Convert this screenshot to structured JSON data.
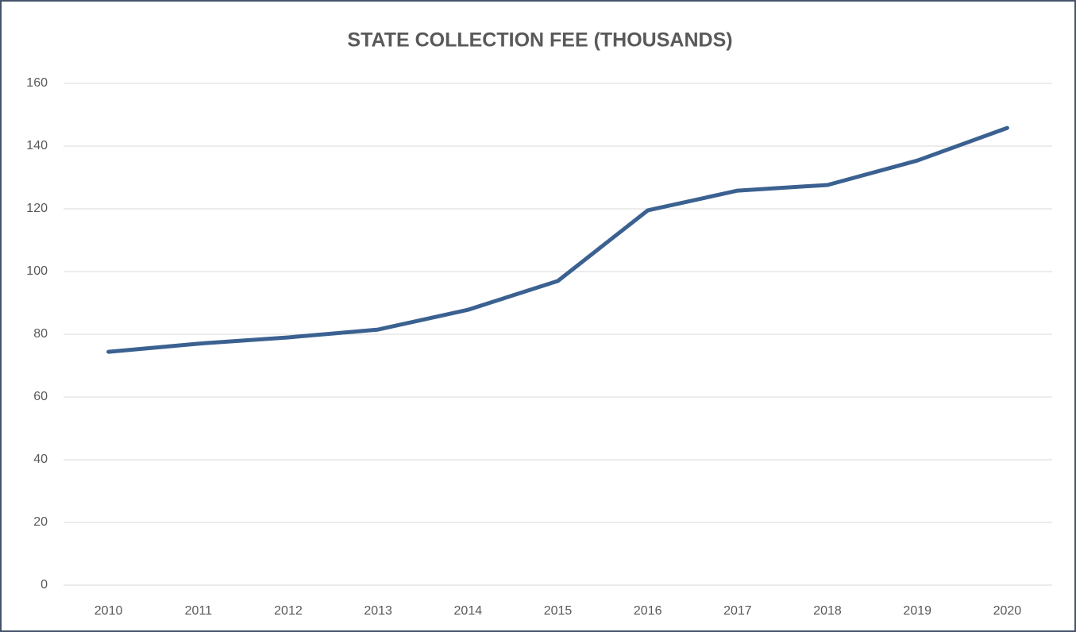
{
  "chart_data": {
    "type": "line",
    "title": "STATE COLLECTION FEE (THOUSANDS)",
    "categories": [
      "2010",
      "2011",
      "2012",
      "2013",
      "2014",
      "2015",
      "2016",
      "2017",
      "2018",
      "2019",
      "2020"
    ],
    "series": [
      {
        "name": "State Collection Fee",
        "color": "#3b6191",
        "values": [
          74.4,
          77,
          79,
          81.5,
          87.8,
          97,
          119.5,
          125.8,
          127.6,
          135.4,
          145.8
        ]
      }
    ],
    "ylim": [
      0,
      160
    ],
    "yticks": [
      0,
      20,
      40,
      60,
      80,
      100,
      120,
      140,
      160
    ],
    "grid": true
  }
}
